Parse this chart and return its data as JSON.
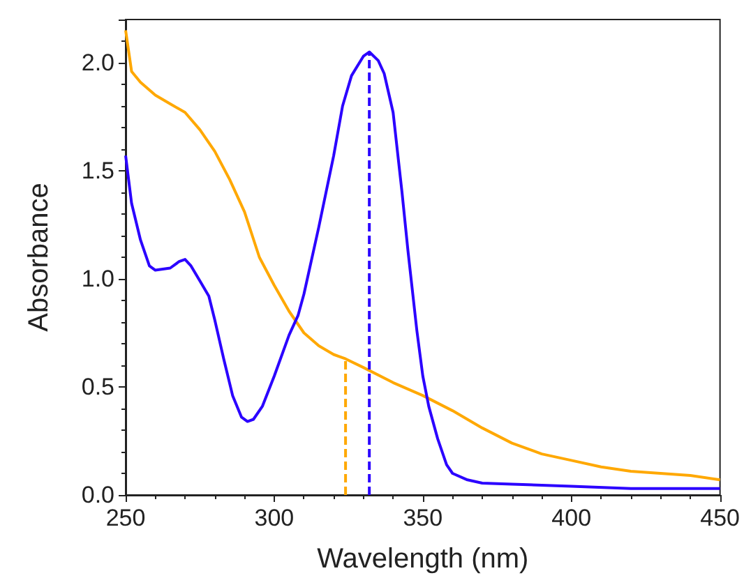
{
  "chart_data": {
    "type": "line",
    "xlabel": "Wavelength (nm)",
    "ylabel": "Absorbance",
    "xlim": [
      250,
      450
    ],
    "xticks": [
      250,
      300,
      350,
      400,
      450
    ],
    "ylim": [
      0,
      2.2
    ],
    "yticks": [
      {
        "value": 0,
        "label": "0.0"
      },
      0.5,
      {
        "value": 1,
        "label": "1.0"
      },
      1.5,
      {
        "value": 2,
        "label": "2.0"
      }
    ],
    "grid": false,
    "marker": "none",
    "series": [
      {
        "color": "#ffa800",
        "line_style": "solid",
        "x": [
          250,
          252,
          255,
          260,
          265,
          270,
          275,
          280,
          285,
          290,
          295,
          300,
          305,
          310,
          315,
          320,
          324,
          330,
          340,
          350,
          360,
          370,
          380,
          390,
          400,
          410,
          420,
          430,
          440,
          450
        ],
        "values": [
          2.15,
          1.96,
          1.91,
          1.85,
          1.81,
          1.77,
          1.69,
          1.59,
          1.46,
          1.31,
          1.1,
          0.97,
          0.85,
          0.75,
          0.69,
          0.65,
          0.63,
          0.59,
          0.52,
          0.46,
          0.39,
          0.31,
          0.24,
          0.19,
          0.16,
          0.13,
          0.11,
          0.1,
          0.09,
          0.07
        ]
      },
      {
        "color": "#2b00ff",
        "line_style": "solid",
        "x": [
          250,
          252,
          255,
          258,
          260,
          265,
          268,
          270,
          272,
          275,
          278,
          280,
          283,
          286,
          289,
          291,
          293,
          296,
          300,
          305,
          308,
          310,
          315,
          320,
          323,
          326,
          330,
          332,
          335,
          337,
          340,
          343,
          345,
          348,
          350,
          352,
          355,
          358,
          360,
          365,
          370,
          380,
          400,
          420,
          450
        ],
        "values": [
          1.57,
          1.35,
          1.18,
          1.06,
          1.04,
          1.05,
          1.08,
          1.09,
          1.06,
          0.99,
          0.92,
          0.81,
          0.63,
          0.46,
          0.36,
          0.34,
          0.35,
          0.41,
          0.55,
          0.74,
          0.83,
          0.93,
          1.24,
          1.57,
          1.8,
          1.94,
          2.03,
          2.05,
          2.01,
          1.95,
          1.77,
          1.4,
          1.13,
          0.76,
          0.55,
          0.41,
          0.26,
          0.14,
          0.1,
          0.07,
          0.055,
          0.05,
          0.04,
          0.03,
          0.03
        ]
      },
      {
        "color": "#ffa800",
        "line_style": "dashed",
        "x": [
          324,
          324
        ],
        "values": [
          0,
          0.63
        ]
      },
      {
        "color": "#2b00ff",
        "line_style": "dashed",
        "x": [
          332,
          332
        ],
        "values": [
          0,
          2.05
        ]
      }
    ]
  }
}
